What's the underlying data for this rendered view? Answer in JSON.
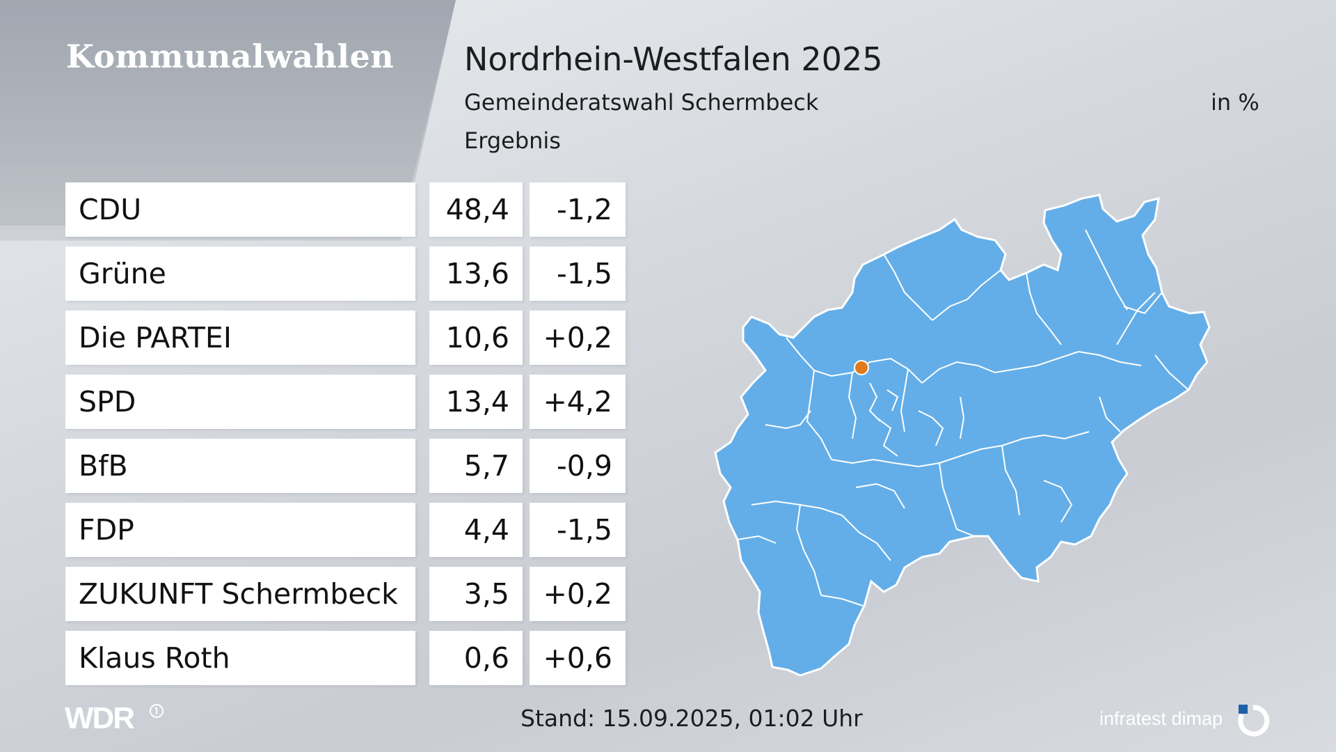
{
  "header": {
    "brand": "Kommunalwahlen",
    "title": "Nordrhein-Westfalen 2025",
    "subtitle": "Gemeinderatswahl Schermbeck",
    "result_label": "Ergebnis",
    "unit": "in %"
  },
  "chart_data": {
    "type": "table",
    "title": "Nordrhein-Westfalen 2025",
    "subtitle": "Gemeinderatswahl Schermbeck",
    "unit": "in %",
    "rows": [
      {
        "party": "CDU",
        "value": "48,4",
        "change": "-1,2"
      },
      {
        "party": "Grüne",
        "value": "13,6",
        "change": "-1,5"
      },
      {
        "party": "Die PARTEI",
        "value": "10,6",
        "change": "+0,2"
      },
      {
        "party": "SPD",
        "value": "13,4",
        "change": "+4,2"
      },
      {
        "party": "BfB",
        "value": "5,7",
        "change": "-0,9"
      },
      {
        "party": "FDP",
        "value": "4,4",
        "change": "-1,5"
      },
      {
        "party": "ZUKUNFT Schermbeck",
        "value": "3,5",
        "change": "+0,2"
      },
      {
        "party": "Klaus Roth",
        "value": "0,6",
        "change": "+0,6"
      }
    ]
  },
  "map": {
    "region_color": "#63aee8",
    "border_color": "#ffffff",
    "marker_color": "#e07a1c"
  },
  "footer": {
    "stand": "Stand: 15.09.2025, 01:02 Uhr",
    "broadcaster": "WDR",
    "source": "infratest dimap"
  }
}
